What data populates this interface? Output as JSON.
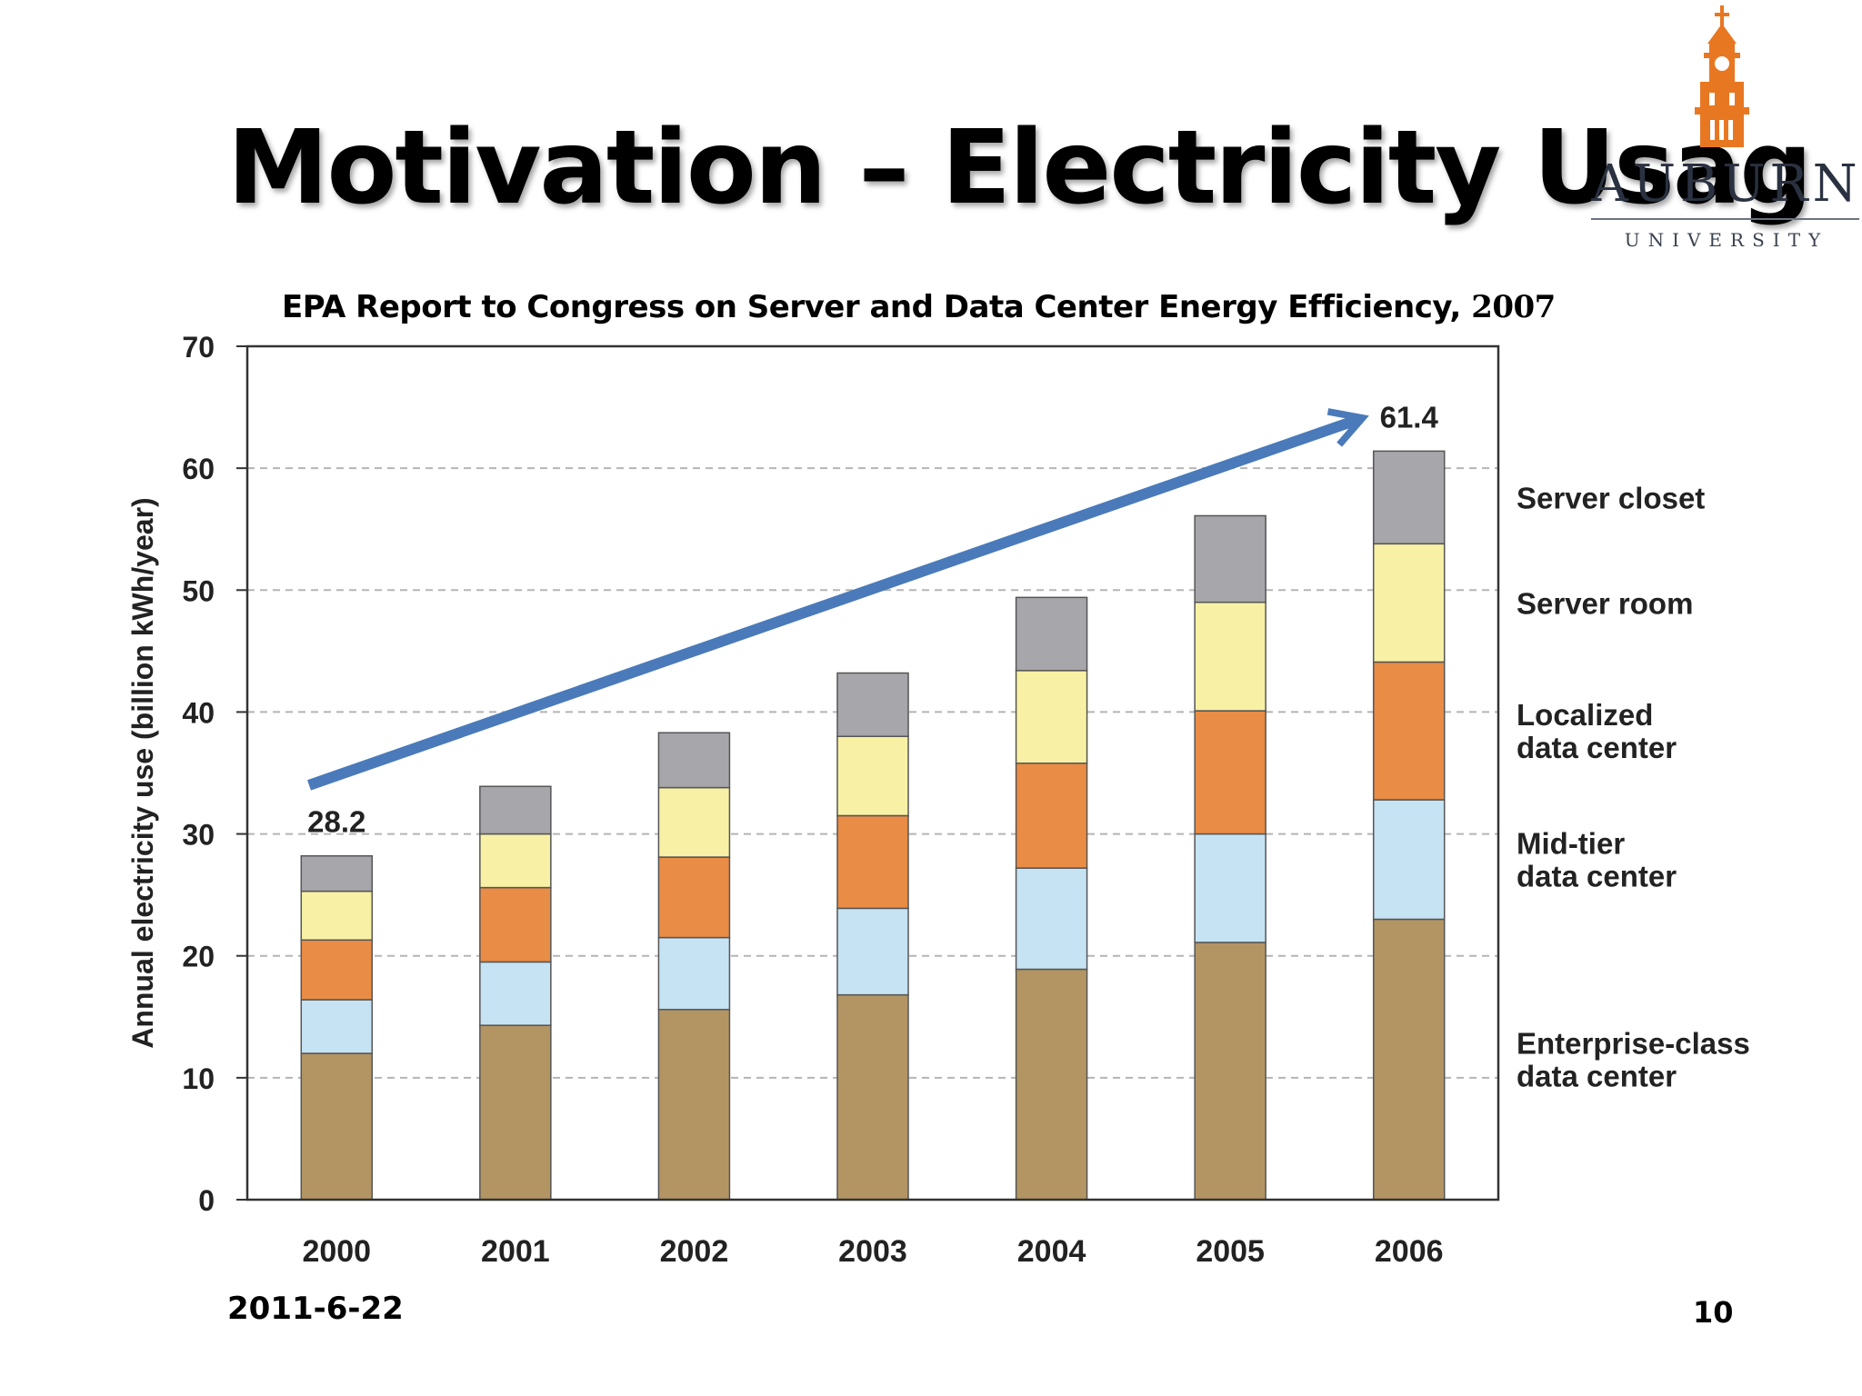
{
  "slide": {
    "title": "Motivation – Electricity Usag",
    "date": "2011-6-22",
    "page": "10"
  },
  "logo": {
    "name": "AUBURN",
    "subtitle": "UNIVERSITY",
    "accent_color": "#e87722"
  },
  "chart_data": {
    "type": "bar",
    "stacked": true,
    "title": "EPA Report to Congress on Server and Data Center Energy Efficiency,",
    "title_year": "2007",
    "xlabel": "",
    "ylabel": "Annual electricity use (billion kWh/year)",
    "ylim": [
      0,
      70
    ],
    "yticks": [
      0,
      10,
      20,
      30,
      40,
      50,
      60,
      70
    ],
    "grid": "dashed horizontal",
    "categories": [
      "2000",
      "2001",
      "2002",
      "2003",
      "2004",
      "2005",
      "2006"
    ],
    "series": [
      {
        "name": "Enterprise-class data center",
        "color": "#b39564",
        "values": [
          12.0,
          14.3,
          15.6,
          16.8,
          18.9,
          21.1,
          23.0
        ]
      },
      {
        "name": "Mid-tier data center",
        "color": "#c5e3f3",
        "values": [
          4.4,
          5.2,
          5.9,
          7.1,
          8.3,
          8.9,
          9.8
        ]
      },
      {
        "name": "Localized data center",
        "color": "#e98c45",
        "values": [
          4.9,
          6.1,
          6.6,
          7.6,
          8.6,
          10.1,
          11.3
        ]
      },
      {
        "name": "Server room",
        "color": "#f8f1a5",
        "values": [
          4.0,
          4.4,
          5.7,
          6.5,
          7.6,
          8.9,
          9.7
        ]
      },
      {
        "name": "Server closet",
        "color": "#a7a6ab",
        "values": [
          2.9,
          3.9,
          4.5,
          5.2,
          6.0,
          7.1,
          7.6
        ]
      }
    ],
    "annotations": [
      {
        "category": "2000",
        "label": "28.2"
      },
      {
        "category": "2006",
        "label": "61.4"
      }
    ],
    "legend": [
      "Server closet",
      "Server room",
      "Localized data center",
      "Mid-tier data center",
      "Enterprise-class data center"
    ],
    "legend_placement": "right",
    "arrow": {
      "from_value": 34,
      "to_value": 64,
      "color": "#4a7ab9",
      "direction": "increasing"
    }
  }
}
